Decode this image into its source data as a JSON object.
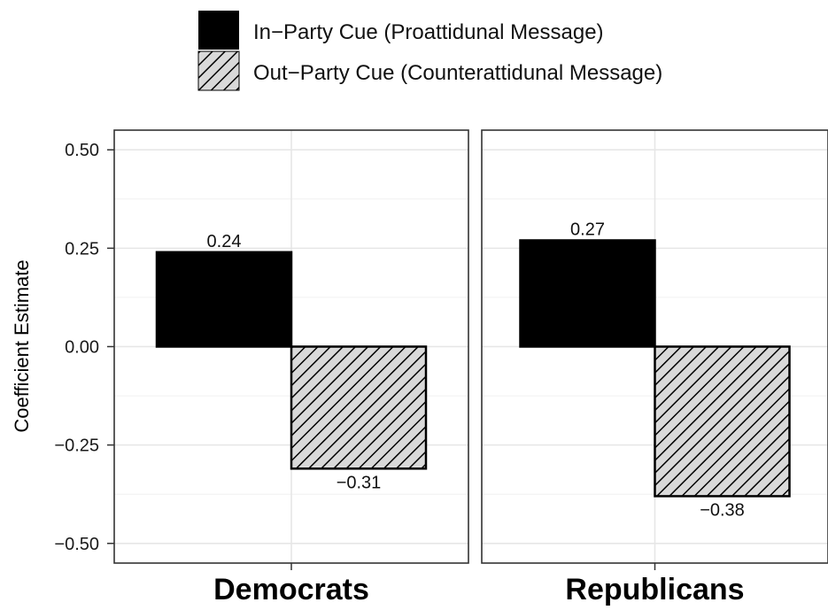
{
  "chart_data": {
    "type": "bar",
    "ylabel": "Coefficient Estimate",
    "ylim": [
      -0.55,
      0.55
    ],
    "y_ticks": [
      0.5,
      0.25,
      0.0,
      -0.25,
      -0.5
    ],
    "y_tick_labels": [
      "0.50",
      "0.25",
      "0.00",
      "−0.25",
      "−0.50"
    ],
    "grid": true,
    "legend_position": "top",
    "series": [
      {
        "name": "In−Party Cue (Proattidunal Message)",
        "fill": "#000000",
        "pattern": "solid"
      },
      {
        "name": "Out−Party Cue (Counterattidunal Message)",
        "fill": "#d9d9d9",
        "pattern": "diagonal-stripes"
      }
    ],
    "panels": [
      {
        "label": "Democrats",
        "values": [
          0.24,
          -0.31
        ],
        "value_labels": [
          "0.24",
          "−0.31"
        ]
      },
      {
        "label": "Republicans",
        "values": [
          0.27,
          -0.38
        ],
        "value_labels": [
          "0.27",
          "−0.38"
        ]
      }
    ]
  }
}
